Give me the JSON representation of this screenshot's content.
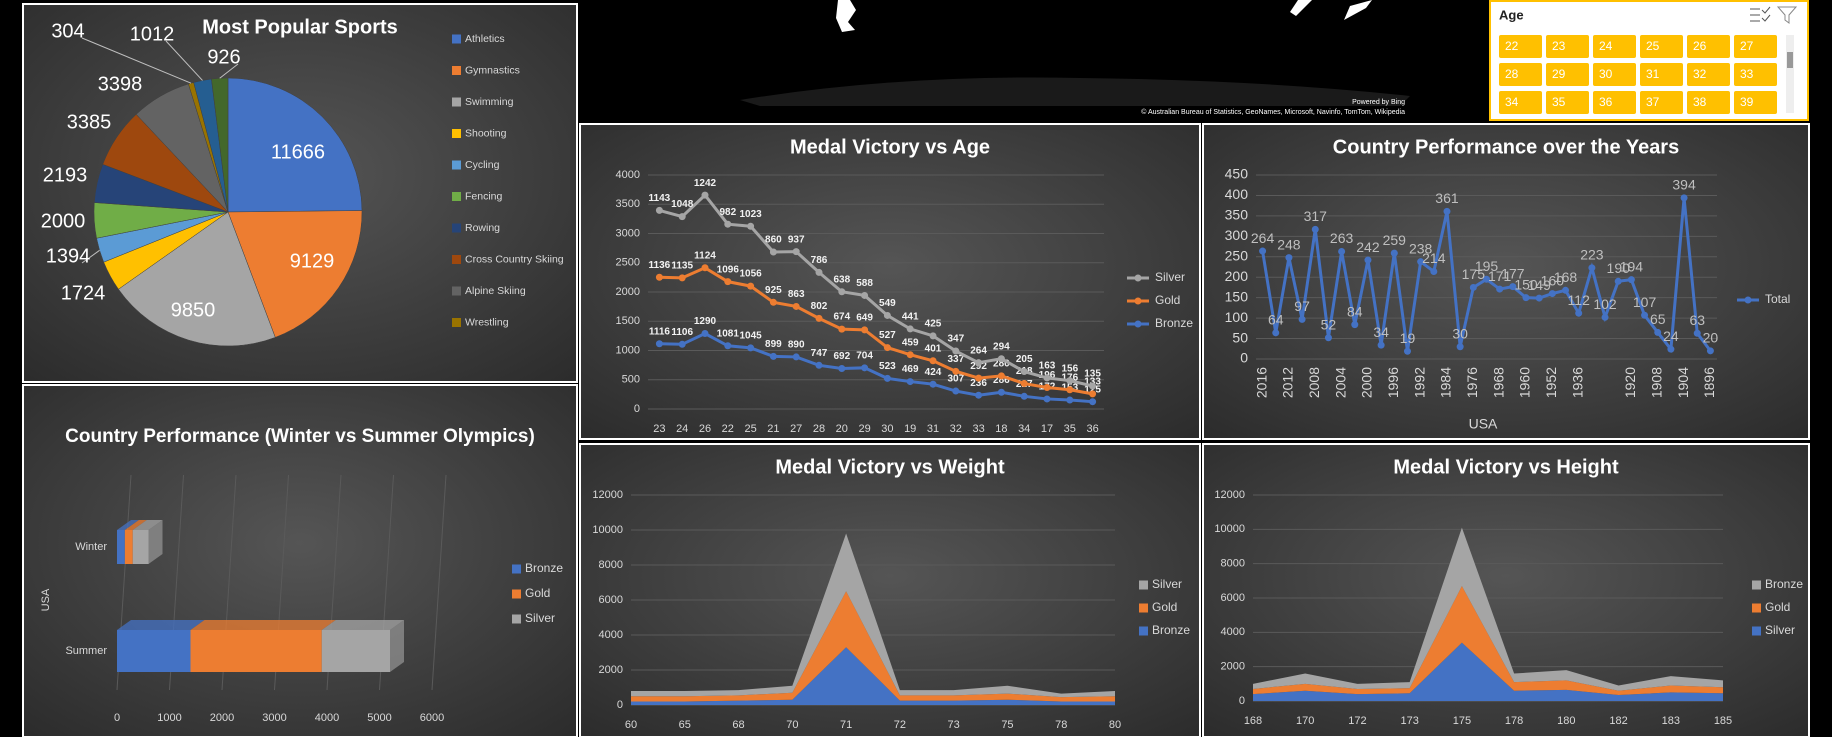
{
  "map": {
    "credit_bing": "Powered by Bing",
    "credit": "© Australian Bureau of Statistics, GeoNames, Microsoft, Navinfo, TomTom, Wikipedia"
  },
  "slicer": {
    "title": "Age",
    "items": [
      22,
      23,
      24,
      25,
      26,
      27,
      28,
      29,
      30,
      31,
      32,
      33,
      34,
      35,
      36,
      37,
      38,
      39
    ]
  },
  "chart_data": [
    {
      "type": "pie",
      "title": "Most Popular Sports",
      "categories": [
        "Athletics",
        "Gymnastics",
        "Swimming",
        "Shooting",
        "Cycling",
        "Fencing",
        "Rowing",
        "Cross Country Skiing",
        "Alpine Skiing",
        "Wrestling",
        null,
        null
      ],
      "values": [
        11666,
        9129,
        9850,
        1724,
        1394,
        2000,
        2193,
        3385,
        3398,
        304,
        1012,
        926
      ],
      "colors": [
        "#4472c4",
        "#ed7d31",
        "#a5a5a5",
        "#ffc000",
        "#5b9bd5",
        "#70ad47",
        "#264478",
        "#9e480e",
        "#636363",
        "#997300",
        "#255e91",
        "#43682b"
      ],
      "legend": "right"
    },
    {
      "type": "bar",
      "orientation": "horizontal",
      "stacked": true,
      "title": "Country Performance (Winter vs Summer Olympics)",
      "categories": [
        "Winter",
        "Summer"
      ],
      "y_label": "USA",
      "series": [
        {
          "name": "Bronze",
          "color": "#4472c4",
          "values": [
            150,
            1400
          ]
        },
        {
          "name": "Gold",
          "color": "#ed7d31",
          "values": [
            150,
            2500
          ]
        },
        {
          "name": "Silver",
          "color": "#a5a5a5",
          "values": [
            300,
            1300
          ]
        }
      ],
      "xlim": [
        0,
        6000
      ],
      "xticks": [
        0,
        1000,
        2000,
        3000,
        4000,
        5000,
        6000
      ],
      "grid": true,
      "legend": "right"
    },
    {
      "type": "line",
      "stacked": true,
      "title": "Medal Victory vs Age",
      "categories": [
        "23",
        "24",
        "26",
        "22",
        "25",
        "21",
        "27",
        "28",
        "20",
        "29",
        "30",
        "19",
        "31",
        "32",
        "33",
        "18",
        "34",
        "17",
        "35",
        "36"
      ],
      "series": [
        {
          "name": "Bronze",
          "color": "#4472c4",
          "values": [
            1116,
            1106,
            1290,
            1081,
            1045,
            899,
            890,
            747,
            692,
            704,
            523,
            469,
            424,
            307,
            236,
            286,
            217,
            172,
            153,
            125
          ]
        },
        {
          "name": "Gold",
          "color": "#ed7d31",
          "values": [
            1136,
            1135,
            1124,
            1096,
            1056,
            925,
            863,
            802,
            674,
            649,
            527,
            459,
            401,
            337,
            292,
            280,
            218,
            196,
            176,
            133
          ]
        },
        {
          "name": "Silver",
          "color": "#a5a5a5",
          "values": [
            1143,
            1048,
            1242,
            982,
            1023,
            860,
            937,
            786,
            638,
            588,
            549,
            441,
            425,
            347,
            264,
            294,
            205,
            163,
            156,
            135
          ]
        }
      ],
      "ylim": [
        0,
        4000
      ],
      "yticks": [
        0,
        500,
        1000,
        1500,
        2000,
        2500,
        3000,
        3500,
        4000
      ],
      "grid": true,
      "data_labels": true,
      "legend": "right"
    },
    {
      "type": "line",
      "title": "Country Performance over the Years",
      "x_label": "USA",
      "categories": [
        "2016",
        null,
        "2012",
        null,
        "2008",
        null,
        "2004",
        null,
        "2000",
        null,
        "1996",
        null,
        "1992",
        null,
        "1984",
        null,
        "1976",
        null,
        "1968",
        null,
        "1960",
        null,
        "1952",
        null,
        "1936",
        null,
        null,
        null,
        "1920",
        null,
        "1908",
        null,
        "1904",
        null,
        "1896"
      ],
      "series": [
        {
          "name": "Total",
          "color": "#4472c4",
          "values": [
            264,
            64,
            248,
            97,
            317,
            52,
            263,
            84,
            242,
            34,
            259,
            19,
            238,
            214,
            361,
            30,
            175,
            195,
            171,
            177,
            150,
            149,
            160,
            168,
            112,
            223,
            102,
            190,
            194,
            107,
            65,
            24,
            394,
            63,
            20
          ]
        }
      ],
      "ylim": [
        0,
        450
      ],
      "yticks": [
        0,
        50,
        100,
        150,
        200,
        250,
        300,
        350,
        400,
        450
      ],
      "grid": true,
      "data_labels": true,
      "legend": "right"
    },
    {
      "type": "area",
      "stacked": true,
      "title": "Medal Victory vs Weight",
      "categories": [
        "60",
        "65",
        "68",
        "70",
        "71",
        "72",
        "73",
        "75",
        "78",
        "80"
      ],
      "series": [
        {
          "name": "Bronze",
          "color": "#4472c4",
          "values": [
            200,
            200,
            250,
            300,
            3300,
            250,
            250,
            300,
            200,
            200
          ]
        },
        {
          "name": "Gold",
          "color": "#ed7d31",
          "values": [
            300,
            300,
            300,
            400,
            3200,
            300,
            300,
            350,
            250,
            300
          ]
        },
        {
          "name": "Silver",
          "color": "#a5a5a5",
          "values": [
            300,
            300,
            300,
            400,
            3300,
            300,
            300,
            450,
            200,
            300
          ]
        }
      ],
      "ylim": [
        0,
        12000
      ],
      "yticks": [
        0,
        2000,
        4000,
        6000,
        8000,
        10000,
        12000
      ],
      "grid": true,
      "legend": "right"
    },
    {
      "type": "area",
      "stacked": true,
      "title": "Medal Victory vs Height",
      "categories": [
        "168",
        "170",
        "172",
        "173",
        "175",
        "178",
        "180",
        "182",
        "183",
        "185"
      ],
      "series": [
        {
          "name": "Silver",
          "color": "#4472c4",
          "values": [
            400,
            600,
            400,
            450,
            3400,
            600,
            650,
            350,
            500,
            450
          ]
        },
        {
          "name": "Gold",
          "color": "#ed7d31",
          "values": [
            300,
            400,
            300,
            300,
            3300,
            500,
            550,
            250,
            400,
            350
          ]
        },
        {
          "name": "Bronze",
          "color": "#a5a5a5",
          "values": [
            300,
            600,
            300,
            350,
            3400,
            500,
            600,
            300,
            550,
            400
          ]
        }
      ],
      "ylim": [
        0,
        12000
      ],
      "yticks": [
        0,
        2000,
        4000,
        6000,
        8000,
        10000,
        12000
      ],
      "grid": true,
      "legend": "right"
    }
  ]
}
